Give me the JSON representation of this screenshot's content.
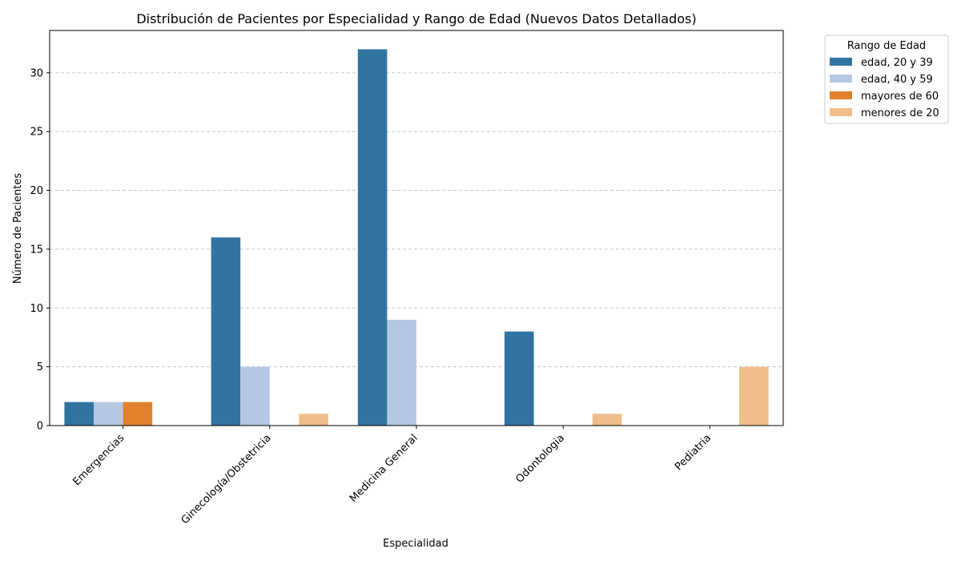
{
  "chart_data": {
    "type": "bar",
    "title": "Distribución de Pacientes por Especialidad y Rango de Edad (Nuevos Datos Detallados)",
    "xlabel": "Especialidad",
    "ylabel": "Número de Pacientes",
    "categories": [
      "Emergencias",
      "Ginecología/Obstetricia",
      "Medicina General",
      "Odontologia",
      "Pediatria"
    ],
    "series": [
      {
        "name": "edad, 20 y 39",
        "color": "#3274a1",
        "values": [
          2,
          16,
          32,
          8,
          0
        ]
      },
      {
        "name": "edad, 40 y 59",
        "color": "#b6c7e3",
        "values": [
          2,
          5,
          9,
          0,
          0
        ]
      },
      {
        "name": "mayores de 60",
        "color": "#e1812c",
        "values": [
          2,
          0,
          0,
          0,
          0
        ]
      },
      {
        "name": "menores de 20",
        "color": "#efbe8b",
        "values": [
          0,
          1,
          0,
          1,
          5
        ]
      }
    ],
    "yticks": [
      0,
      5,
      10,
      15,
      20,
      25,
      30
    ],
    "ylim": [
      0,
      33.6
    ],
    "grid": "y, dashed",
    "legend": {
      "title": "Rango de Edad",
      "placement": "outside-top-right"
    }
  }
}
